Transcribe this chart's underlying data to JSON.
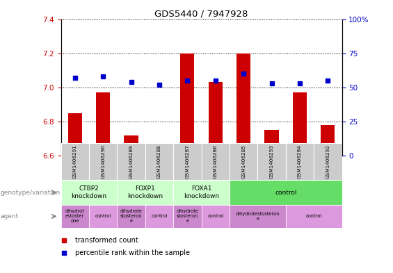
{
  "title": "GDS5440 / 7947928",
  "samples": [
    "GSM1406291",
    "GSM1406290",
    "GSM1406289",
    "GSM1406288",
    "GSM1406287",
    "GSM1406286",
    "GSM1406285",
    "GSM1406293",
    "GSM1406284",
    "GSM1406292"
  ],
  "transformed_counts": [
    6.85,
    6.97,
    6.72,
    6.63,
    7.2,
    7.03,
    7.2,
    6.75,
    6.97,
    6.78
  ],
  "percentile_ranks": [
    57,
    58,
    54,
    52,
    55,
    55,
    60,
    53,
    53,
    55
  ],
  "ylim_left": [
    6.6,
    7.4
  ],
  "ylim_right": [
    0,
    100
  ],
  "yticks_left": [
    6.6,
    6.8,
    7.0,
    7.2,
    7.4
  ],
  "yticks_right": [
    0,
    25,
    50,
    75,
    100
  ],
  "bar_color": "#cc0000",
  "dot_color": "#0000cc",
  "bar_width": 0.5,
  "genotype_groups": [
    {
      "label": "CTBP2\nknockdown",
      "start": 0,
      "end": 1,
      "color": "#ccffcc"
    },
    {
      "label": "FOXP1\nknockdown",
      "start": 2,
      "end": 3,
      "color": "#ccffcc"
    },
    {
      "label": "FOXA1\nknockdown",
      "start": 4,
      "end": 5,
      "color": "#ccffcc"
    },
    {
      "label": "control",
      "start": 6,
      "end": 9,
      "color": "#66dd66"
    }
  ],
  "agent_groups": [
    {
      "label": "dihydrot\nestoster\none",
      "start": 0,
      "end": 0,
      "color": "#cc88cc"
    },
    {
      "label": "control",
      "start": 1,
      "end": 1,
      "color": "#dd99dd"
    },
    {
      "label": "dihydrote\nstosteron\ne",
      "start": 2,
      "end": 2,
      "color": "#cc88cc"
    },
    {
      "label": "control",
      "start": 3,
      "end": 3,
      "color": "#dd99dd"
    },
    {
      "label": "dihydrote\nstosteron\ne",
      "start": 4,
      "end": 4,
      "color": "#cc88cc"
    },
    {
      "label": "control",
      "start": 5,
      "end": 5,
      "color": "#dd99dd"
    },
    {
      "label": "dihydrotestosteron\ne",
      "start": 6,
      "end": 7,
      "color": "#cc88cc"
    },
    {
      "label": "control",
      "start": 8,
      "end": 9,
      "color": "#dd99dd"
    }
  ],
  "left_axis_color": "#cc0000",
  "right_axis_color": "#0000cc",
  "sample_row_color": "#cccccc",
  "legend_red_label": "transformed count",
  "legend_blue_label": "percentile rank within the sample"
}
